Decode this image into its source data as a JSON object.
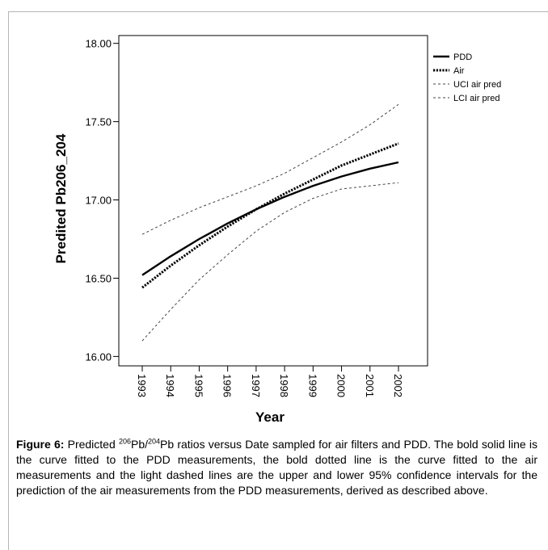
{
  "chart_data": {
    "type": "line",
    "xlabel": "Year",
    "ylabel": "Predited Pb206_204",
    "x": [
      1993,
      1994,
      1995,
      1996,
      1997,
      1998,
      1999,
      2000,
      2001,
      2002
    ],
    "x_tick_labels": [
      "1993",
      "1994",
      "1995",
      "1996",
      "1997",
      "1998",
      "1999",
      "2000",
      "2001",
      "2002"
    ],
    "y_ticks": [
      16.0,
      16.5,
      17.0,
      17.5,
      18.0
    ],
    "y_tick_labels": [
      "16.00",
      "16.50",
      "17.00",
      "17.50",
      "18.00"
    ],
    "ylim": [
      15.94,
      18.05
    ],
    "legend_position": "right",
    "grid": false,
    "series": [
      {
        "name": "PDD",
        "style": "solid-bold",
        "color": "#000000",
        "values": [
          16.52,
          16.64,
          16.75,
          16.85,
          16.94,
          17.02,
          17.09,
          17.15,
          17.2,
          17.24
        ]
      },
      {
        "name": "Air",
        "style": "dotted-bold",
        "color": "#000000",
        "values": [
          16.44,
          16.58,
          16.71,
          16.83,
          16.94,
          17.04,
          17.13,
          17.22,
          17.29,
          17.36
        ]
      },
      {
        "name": "UCI air pred",
        "style": "dashed-light",
        "color": "#444444",
        "values": [
          16.78,
          16.87,
          16.95,
          17.02,
          17.09,
          17.17,
          17.27,
          17.37,
          17.48,
          17.61
        ]
      },
      {
        "name": "LCI air pred",
        "style": "dashed-light",
        "color": "#444444",
        "values": [
          16.1,
          16.3,
          16.49,
          16.65,
          16.8,
          16.92,
          17.01,
          17.07,
          17.09,
          17.11
        ]
      }
    ]
  },
  "caption": {
    "label": "Figure 6:",
    "text_1": " Predicted ",
    "sup_1": "206",
    "text_2": "Pb/",
    "sup_2": "204",
    "text_3": "Pb ratios versus Date sampled for air filters and PDD. The bold solid line is the curve fitted to the PDD measurements, the bold dotted line is the curve fitted to the air measurements and the light dashed lines are the upper and lower 95% confidence intervals for the prediction of the air measurements from the PDD measurements, derived as described above."
  }
}
